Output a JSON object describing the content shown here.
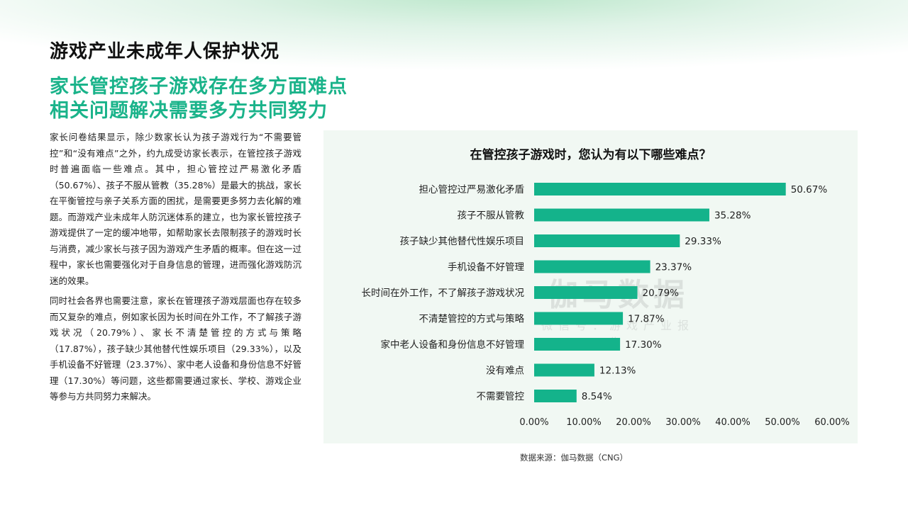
{
  "page": {
    "title": "游戏产业未成年人保护状况",
    "headline_line1": "家长管控孩子游戏存在多方面难点",
    "headline_line2": "相关问题解决需要多方共同努力",
    "paragraph1": "家长问卷结果显示，除少数家长认为孩子游戏行为“不需要管控”和“没有难点”之外，约九成受访家长表示，在管控孩子游戏时普遍面临一些难点。其中，担心管控过严易激化矛盾（50.67%）、孩子不服从管教（35.28%）是最大的挑战，家长在平衡管控与亲子关系方面的困扰，是需要更多努力去化解的难题。而游戏产业未成年人防沉迷体系的建立，也为家长管控孩子游戏提供了一定的缓冲地带，如帮助家长去限制孩子的游戏时长与消费，减少家长与孩子因为游戏产生矛盾的概率。但在这一过程中，家长也需要强化对于自身信息的管理，进而强化游戏防沉迷的效果。",
    "paragraph2": "同时社会各界也需要注意，家长在管理孩子游戏层面也存在较多而又复杂的难点，例如家长因为长时间在外工作，不了解孩子游戏状况（20.79%）、家长不清楚管控的方式与策略（17.87%），孩子缺少其他替代性娱乐项目（29.33%），以及手机设备不好管理（23.37%）、家中老人设备和身份信息不好管理（17.30%）等问题，这些都需要通过家长、学校、游戏企业等参与方共同努力来解决。",
    "source": "数据来源：伽马数据（CNG）",
    "watermark_big": "伽马数据",
    "watermark_small": "微信号：游戏产业报告"
  },
  "colors": {
    "bar": "#14b38b",
    "headline": "#1ab38a",
    "panel": "#f1f8f3"
  },
  "chart_data": {
    "type": "bar",
    "orientation": "horizontal",
    "title": "在管控孩子游戏时，您认为有以下哪些难点？",
    "categories": [
      "担心管控过严易激化矛盾",
      "孩子不服从管教",
      "孩子缺少其他替代性娱乐项目",
      "手机设备不好管理",
      "长时间在外工作，不了解孩子游戏状况",
      "不清楚管控的方式与策略",
      "家中老人设备和身份信息不好管理",
      "没有难点",
      "不需要管控"
    ],
    "values": [
      50.67,
      35.28,
      29.33,
      23.37,
      20.79,
      17.87,
      17.3,
      12.13,
      8.54
    ],
    "value_labels": [
      "50.67%",
      "35.28%",
      "29.33%",
      "23.37%",
      "20.79%",
      "17.87%",
      "17.30%",
      "12.13%",
      "8.54%"
    ],
    "xlim": [
      0,
      60
    ],
    "x_ticks": [
      "0.00%",
      "10.00%",
      "20.00%",
      "30.00%",
      "40.00%",
      "50.00%",
      "60.00%"
    ],
    "grid": false,
    "legend": "none"
  }
}
